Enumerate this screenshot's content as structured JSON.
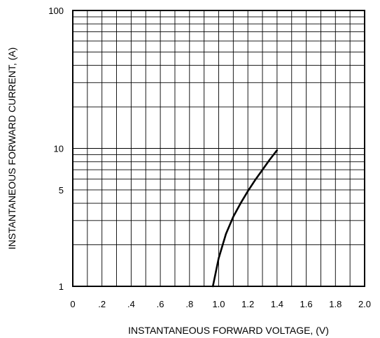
{
  "chart_data": {
    "type": "line",
    "title": "",
    "xlabel": "INSTANTANEOUS FORWARD VOLTAGE, (V)",
    "ylabel": "INSTANTANEOUS FORWARD CURRENT, (A)",
    "xlim": [
      0,
      2.0
    ],
    "ylim": [
      1,
      100
    ],
    "yscale": "log",
    "grid": true,
    "x_ticks": [
      {
        "value": 0,
        "label": "0"
      },
      {
        "value": 0.2,
        "label": ".2"
      },
      {
        "value": 0.4,
        "label": ".4"
      },
      {
        "value": 0.6,
        "label": ".6"
      },
      {
        "value": 0.8,
        "label": ".8"
      },
      {
        "value": 1.0,
        "label": "1.0"
      },
      {
        "value": 1.2,
        "label": "1.2"
      },
      {
        "value": 1.4,
        "label": "1.4"
      },
      {
        "value": 1.6,
        "label": "1.6"
      },
      {
        "value": 1.8,
        "label": "1.8"
      },
      {
        "value": 2.0,
        "label": "2.0"
      }
    ],
    "x_gridlines": [
      0.1,
      0.2,
      0.3,
      0.4,
      0.5,
      0.6,
      0.7,
      0.8,
      0.9,
      1.0,
      1.1,
      1.2,
      1.3,
      1.4,
      1.5,
      1.6,
      1.7,
      1.8,
      1.9
    ],
    "y_ticks": [
      {
        "value": 1,
        "label": "1"
      },
      {
        "value": 5,
        "label": "5"
      },
      {
        "value": 10,
        "label": "10"
      },
      {
        "value": 100,
        "label": "100"
      }
    ],
    "y_gridlines": [
      2,
      3,
      4,
      5,
      6,
      7,
      8,
      9,
      10,
      20,
      30,
      40,
      50,
      60,
      70,
      80,
      90
    ],
    "series": [
      {
        "color": "#000000",
        "points": [
          {
            "x": 0.96,
            "y": 1.0
          },
          {
            "x": 1.0,
            "y": 1.6
          },
          {
            "x": 1.05,
            "y": 2.4
          },
          {
            "x": 1.1,
            "y": 3.2
          },
          {
            "x": 1.15,
            "y": 4.0
          },
          {
            "x": 1.2,
            "y": 4.9
          },
          {
            "x": 1.25,
            "y": 5.9
          },
          {
            "x": 1.3,
            "y": 7.0
          },
          {
            "x": 1.35,
            "y": 8.3
          },
          {
            "x": 1.4,
            "y": 9.7
          }
        ]
      }
    ]
  }
}
